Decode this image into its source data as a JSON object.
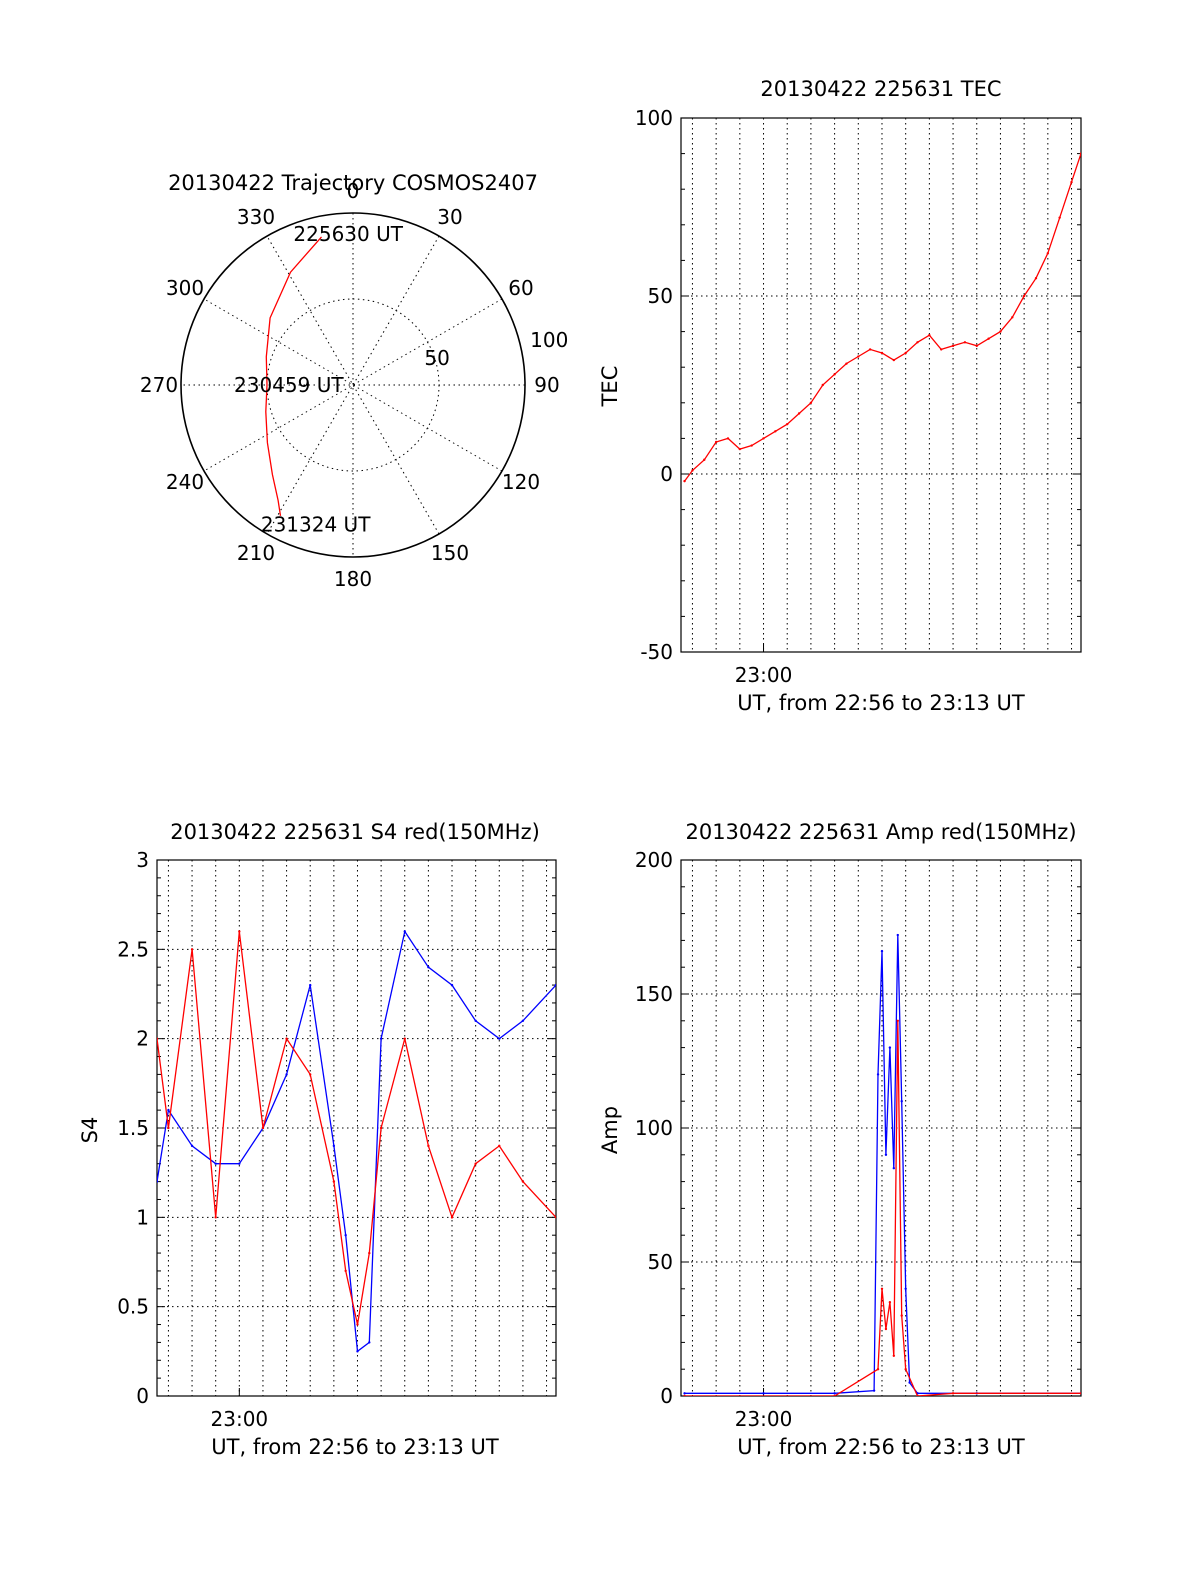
{
  "chart_data": [
    {
      "type": "polar",
      "title": "20130422 Trajectory COSMOS2407",
      "angle_labels": [
        "0",
        "30",
        "60",
        "90",
        "120",
        "150",
        "180",
        "210",
        "240",
        "270",
        "300",
        "330"
      ],
      "radius_labels": [
        "50",
        "100"
      ],
      "rlim": [
        0,
        100
      ],
      "direction": "clockwise-from-top",
      "grid": true,
      "annotations": [
        {
          "text": "225630 UT",
          "azimuth": 350,
          "radius": 89
        },
        {
          "text": "230459 UT",
          "azimuth": 270,
          "radius": 50
        },
        {
          "text": "231324 UT",
          "azimuth": 203,
          "radius": 88
        }
      ],
      "series": [
        {
          "color": "#ff0000",
          "azimuth": [
            348,
            331,
            309,
            288,
            270,
            253,
            236,
            222,
            213,
            209
          ],
          "radius": [
            88,
            75,
            62,
            53,
            50,
            53,
            60,
            70,
            80,
            87
          ]
        }
      ]
    },
    {
      "type": "line",
      "title": "20130422 225631 TEC",
      "xlabel": "UT, from 22:56 to 23:13 UT",
      "ylabel": "TEC",
      "xlim": [
        "22:56:31",
        "23:13:24"
      ],
      "ylim": [
        -50,
        100
      ],
      "yticks": [
        "100",
        "50",
        "0",
        "-50"
      ],
      "xticks": [
        "23:00"
      ],
      "grid": true,
      "series": [
        {
          "color": "#ff0000",
          "x": [
            "22:56:40",
            "22:57:00",
            "22:57:30",
            "22:58:00",
            "22:58:30",
            "22:59:00",
            "22:59:30",
            "23:00:00",
            "23:00:30",
            "23:01:00",
            "23:01:30",
            "23:02:00",
            "23:02:30",
            "23:03:00",
            "23:03:30",
            "23:04:00",
            "23:04:30",
            "23:05:00",
            "23:05:30",
            "23:06:00",
            "23:06:30",
            "23:07:00",
            "23:07:30",
            "23:08:00",
            "23:08:30",
            "23:09:00",
            "23:09:30",
            "23:10:00",
            "23:10:30",
            "23:11:00",
            "23:11:30",
            "23:12:00",
            "23:12:30",
            "23:13:00",
            "23:13:24"
          ],
          "values": [
            -2,
            1,
            4,
            9,
            10,
            7,
            8,
            10,
            12,
            14,
            17,
            20,
            25,
            28,
            31,
            33,
            35,
            34,
            32,
            34,
            37,
            39,
            35,
            36,
            37,
            36,
            38,
            40,
            44,
            50,
            55,
            62,
            72,
            82,
            90
          ]
        }
      ]
    },
    {
      "type": "line",
      "title": "20130422 225631 S4 red(150MHz)",
      "xlabel": "UT, from 22:56 to 23:13 UT",
      "ylabel": "S4",
      "xlim": [
        "22:56:31",
        "23:13:24"
      ],
      "ylim": [
        0,
        3
      ],
      "yticks": [
        "3",
        "2.5",
        "2",
        "1.5",
        "1",
        "0.5",
        "0"
      ],
      "xticks": [
        "23:00"
      ],
      "grid": true,
      "series": [
        {
          "color": "#0000ff",
          "x": [
            "22:56:31",
            "22:57:00",
            "22:58:00",
            "22:59:00",
            "23:00:00",
            "23:01:00",
            "23:02:00",
            "23:03:00",
            "23:04:00",
            "23:04:30",
            "23:05:00",
            "23:05:30",
            "23:06:00",
            "23:07:00",
            "23:08:00",
            "23:09:00",
            "23:10:00",
            "23:11:00",
            "23:12:00",
            "23:13:24"
          ],
          "values": [
            1.2,
            1.6,
            1.4,
            1.3,
            1.3,
            1.5,
            1.8,
            2.3,
            1.4,
            0.9,
            0.25,
            0.3,
            2.0,
            2.6,
            2.4,
            2.3,
            2.1,
            2.0,
            2.1,
            2.3
          ]
        },
        {
          "color": "#ff0000",
          "x": [
            "22:56:31",
            "22:57:00",
            "22:58:00",
            "22:59:00",
            "23:00:00",
            "23:01:00",
            "23:02:00",
            "23:03:00",
            "23:04:00",
            "23:04:30",
            "23:05:00",
            "23:05:30",
            "23:06:00",
            "23:07:00",
            "23:08:00",
            "23:09:00",
            "23:10:00",
            "23:11:00",
            "23:12:00",
            "23:13:24"
          ],
          "values": [
            2.0,
            1.5,
            2.5,
            1.0,
            2.6,
            1.5,
            2.0,
            1.8,
            1.2,
            0.7,
            0.4,
            0.8,
            1.5,
            2.0,
            1.4,
            1.0,
            1.3,
            1.4,
            1.2,
            1.0
          ]
        }
      ]
    },
    {
      "type": "line",
      "title": "20130422 225631 Amp red(150MHz)",
      "xlabel": "UT, from 22:56 to 23:13 UT",
      "ylabel": "Amp",
      "xlim": [
        "22:56:31",
        "23:13:24"
      ],
      "ylim": [
        0,
        200
      ],
      "yticks": [
        "200",
        "150",
        "100",
        "50",
        "0"
      ],
      "xticks": [
        "23:00"
      ],
      "grid": true,
      "series": [
        {
          "color": "#0000ff",
          "x": [
            "22:56:40",
            "23:00:00",
            "23:03:00",
            "23:04:40",
            "23:04:50",
            "23:05:00",
            "23:05:10",
            "23:05:20",
            "23:05:30",
            "23:05:40",
            "23:05:50",
            "23:06:00",
            "23:06:10",
            "23:06:30",
            "23:09:00",
            "23:13:24"
          ],
          "values": [
            1,
            1,
            1,
            2,
            120,
            166,
            90,
            130,
            85,
            172,
            110,
            40,
            5,
            1,
            1,
            1
          ]
        },
        {
          "color": "#ff0000",
          "x": [
            "22:56:40",
            "23:03:00",
            "23:04:50",
            "23:05:00",
            "23:05:10",
            "23:05:20",
            "23:05:30",
            "23:05:40",
            "23:05:50",
            "23:06:00",
            "23:06:30",
            "23:08:00",
            "23:13:24"
          ],
          "values": [
            0,
            0,
            10,
            40,
            25,
            35,
            15,
            140,
            30,
            10,
            0,
            1,
            1
          ]
        }
      ]
    }
  ]
}
